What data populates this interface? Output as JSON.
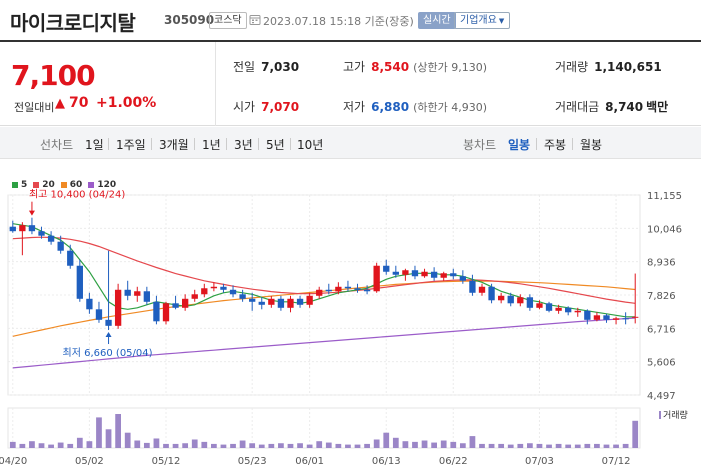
{
  "header": {
    "stock_name": "마이크로디지탈",
    "stock_code": "305090",
    "market_badge": "코스닥",
    "basis_time": "2023.07.18 15:18 기준(장중)",
    "realtime_badge": "실시간",
    "company_info_button": "기업개요",
    "icons": {
      "clock": "clock-icon",
      "dropdown": "caret-down-icon"
    }
  },
  "quote": {
    "current_price": "7,100",
    "diff_label": "전일대비",
    "diff_arrow": "▲",
    "diff_value": "70",
    "diff_rate": "+1.00%",
    "prev_close": {
      "label": "전일",
      "value": "7,030"
    },
    "high": {
      "label": "고가",
      "value": "8,540",
      "sub": "(상한가 9,130)"
    },
    "volume": {
      "label": "거래량",
      "value": "1,140,651"
    },
    "open": {
      "label": "시가",
      "value": "7,070"
    },
    "low": {
      "label": "저가",
      "value": "6,880",
      "sub": "(하한가 4,930)"
    },
    "trade_amount": {
      "label": "거래대금",
      "value": "8,740",
      "unit": "백만"
    },
    "colors": {
      "up": "#e0151d",
      "down": "#1f5fbf"
    }
  },
  "periods": {
    "line_label": "선차트",
    "line_options": [
      "1일",
      "1주일",
      "3개월",
      "1년",
      "3년",
      "5년",
      "10년"
    ],
    "candle_label": "봉차트",
    "candle_options": [
      "일봉",
      "주봉",
      "월봉"
    ],
    "candle_selected": "일봉"
  },
  "chart_data": {
    "type": "candlestick",
    "moving_averages": [
      {
        "name": "5",
        "color": "#2ea043"
      },
      {
        "name": "20",
        "color": "#e5484d"
      },
      {
        "name": "60",
        "color": "#f08a24"
      },
      {
        "name": "120",
        "color": "#9b5cc9"
      }
    ],
    "y_ticks": [
      11155,
      10046,
      8936,
      7826,
      6716,
      5606,
      4497
    ],
    "y_tick_labels": [
      "11,155",
      "10,046",
      "8,936",
      "7,826",
      "6,716",
      "5,606",
      "4,497"
    ],
    "y_range": [
      4497,
      11155
    ],
    "x_ticks": [
      {
        "index": 0,
        "label": "04/20"
      },
      {
        "index": 8,
        "label": "05/02"
      },
      {
        "index": 16,
        "label": "05/12"
      },
      {
        "index": 25,
        "label": "05/23"
      },
      {
        "index": 31,
        "label": "06/01"
      },
      {
        "index": 39,
        "label": "06/13"
      },
      {
        "index": 46,
        "label": "06/22"
      },
      {
        "index": 55,
        "label": "07/03"
      },
      {
        "index": 63,
        "label": "07/12"
      }
    ],
    "max_annotation": {
      "label": "최고 10,400 (04/24)",
      "index": 2,
      "value": 10400
    },
    "min_annotation": {
      "label": "최저 6,660 (05/04)",
      "index": 10,
      "value": 6660
    },
    "volume_label": "거래량",
    "candles": [
      {
        "o": 10100,
        "h": 10300,
        "l": 9900,
        "c": 9950
      },
      {
        "o": 9950,
        "h": 10250,
        "l": 9150,
        "c": 10150
      },
      {
        "o": 10150,
        "h": 10400,
        "l": 9850,
        "c": 9950
      },
      {
        "o": 9950,
        "h": 10100,
        "l": 9700,
        "c": 9800
      },
      {
        "o": 9800,
        "h": 9950,
        "l": 9500,
        "c": 9600
      },
      {
        "o": 9600,
        "h": 9800,
        "l": 9200,
        "c": 9300
      },
      {
        "o": 9300,
        "h": 9500,
        "l": 8700,
        "c": 8800
      },
      {
        "o": 8800,
        "h": 9000,
        "l": 7600,
        "c": 7700
      },
      {
        "o": 7700,
        "h": 7900,
        "l": 7200,
        "c": 7350
      },
      {
        "o": 7350,
        "h": 7600,
        "l": 6900,
        "c": 7000
      },
      {
        "o": 7000,
        "h": 9300,
        "l": 6660,
        "c": 6800
      },
      {
        "o": 6800,
        "h": 8200,
        "l": 6700,
        "c": 8000
      },
      {
        "o": 8000,
        "h": 8300,
        "l": 7650,
        "c": 7800
      },
      {
        "o": 7800,
        "h": 8100,
        "l": 7600,
        "c": 7950
      },
      {
        "o": 7950,
        "h": 8100,
        "l": 7500,
        "c": 7600
      },
      {
        "o": 7600,
        "h": 7800,
        "l": 6850,
        "c": 6950
      },
      {
        "o": 6950,
        "h": 7600,
        "l": 6850,
        "c": 7550
      },
      {
        "o": 7550,
        "h": 7800,
        "l": 7350,
        "c": 7400
      },
      {
        "o": 7400,
        "h": 7850,
        "l": 7300,
        "c": 7700
      },
      {
        "o": 7700,
        "h": 8000,
        "l": 7600,
        "c": 7850
      },
      {
        "o": 7850,
        "h": 8200,
        "l": 7750,
        "c": 8050
      },
      {
        "o": 8050,
        "h": 8250,
        "l": 7950,
        "c": 8100
      },
      {
        "o": 8100,
        "h": 8200,
        "l": 7900,
        "c": 8000
      },
      {
        "o": 8000,
        "h": 8150,
        "l": 7750,
        "c": 7850
      },
      {
        "o": 7850,
        "h": 8000,
        "l": 7600,
        "c": 7700
      },
      {
        "o": 7700,
        "h": 7900,
        "l": 7300,
        "c": 7600
      },
      {
        "o": 7600,
        "h": 7750,
        "l": 7350,
        "c": 7500
      },
      {
        "o": 7500,
        "h": 7800,
        "l": 7400,
        "c": 7700
      },
      {
        "o": 7700,
        "h": 7800,
        "l": 7300,
        "c": 7400
      },
      {
        "o": 7400,
        "h": 7800,
        "l": 7250,
        "c": 7700
      },
      {
        "o": 7700,
        "h": 7800,
        "l": 7400,
        "c": 7500
      },
      {
        "o": 7500,
        "h": 7900,
        "l": 7400,
        "c": 7800
      },
      {
        "o": 7800,
        "h": 8100,
        "l": 7700,
        "c": 8000
      },
      {
        "o": 8000,
        "h": 8200,
        "l": 7850,
        "c": 7950
      },
      {
        "o": 7950,
        "h": 8250,
        "l": 7850,
        "c": 8100
      },
      {
        "o": 8100,
        "h": 8300,
        "l": 7950,
        "c": 8050
      },
      {
        "o": 8050,
        "h": 8200,
        "l": 7900,
        "c": 8000
      },
      {
        "o": 8000,
        "h": 8150,
        "l": 7850,
        "c": 7950
      },
      {
        "o": 7950,
        "h": 8900,
        "l": 7900,
        "c": 8800
      },
      {
        "o": 8800,
        "h": 9000,
        "l": 8500,
        "c": 8600
      },
      {
        "o": 8600,
        "h": 8800,
        "l": 8400,
        "c": 8500
      },
      {
        "o": 8500,
        "h": 8700,
        "l": 8300,
        "c": 8650
      },
      {
        "o": 8650,
        "h": 8800,
        "l": 8350,
        "c": 8450
      },
      {
        "o": 8450,
        "h": 8700,
        "l": 8400,
        "c": 8600
      },
      {
        "o": 8600,
        "h": 8750,
        "l": 8300,
        "c": 8400
      },
      {
        "o": 8400,
        "h": 8600,
        "l": 8300,
        "c": 8550
      },
      {
        "o": 8550,
        "h": 8700,
        "l": 8350,
        "c": 8450
      },
      {
        "o": 8450,
        "h": 8650,
        "l": 8200,
        "c": 8300
      },
      {
        "o": 8300,
        "h": 8500,
        "l": 7800,
        "c": 7900
      },
      {
        "o": 7900,
        "h": 8200,
        "l": 7800,
        "c": 8100
      },
      {
        "o": 8100,
        "h": 8200,
        "l": 7550,
        "c": 7650
      },
      {
        "o": 7650,
        "h": 7900,
        "l": 7550,
        "c": 7800
      },
      {
        "o": 7800,
        "h": 7900,
        "l": 7450,
        "c": 7550
      },
      {
        "o": 7550,
        "h": 7850,
        "l": 7450,
        "c": 7750
      },
      {
        "o": 7750,
        "h": 7850,
        "l": 7300,
        "c": 7400
      },
      {
        "o": 7400,
        "h": 7650,
        "l": 7350,
        "c": 7550
      },
      {
        "o": 7550,
        "h": 7600,
        "l": 7250,
        "c": 7300
      },
      {
        "o": 7300,
        "h": 7500,
        "l": 7200,
        "c": 7400
      },
      {
        "o": 7400,
        "h": 7450,
        "l": 7150,
        "c": 7250
      },
      {
        "o": 7250,
        "h": 7400,
        "l": 7100,
        "c": 7300
      },
      {
        "o": 7300,
        "h": 7350,
        "l": 6850,
        "c": 7000
      },
      {
        "o": 7000,
        "h": 7250,
        "l": 6950,
        "c": 7150
      },
      {
        "o": 7150,
        "h": 7200,
        "l": 6900,
        "c": 7000
      },
      {
        "o": 7000,
        "h": 7100,
        "l": 6850,
        "c": 7050
      },
      {
        "o": 7050,
        "h": 7250,
        "l": 6850,
        "c": 7030
      },
      {
        "o": 7070,
        "h": 8540,
        "l": 6880,
        "c": 7100
      }
    ],
    "volumes": [
      0.18,
      0.12,
      0.2,
      0.14,
      0.1,
      0.16,
      0.12,
      0.3,
      0.2,
      0.9,
      0.55,
      1.0,
      0.45,
      0.22,
      0.15,
      0.28,
      0.12,
      0.12,
      0.14,
      0.25,
      0.18,
      0.12,
      0.1,
      0.12,
      0.22,
      0.14,
      0.1,
      0.12,
      0.14,
      0.12,
      0.14,
      0.1,
      0.2,
      0.16,
      0.12,
      0.1,
      0.1,
      0.12,
      0.25,
      0.45,
      0.3,
      0.2,
      0.18,
      0.22,
      0.16,
      0.22,
      0.18,
      0.14,
      0.35,
      0.12,
      0.12,
      0.12,
      0.1,
      0.12,
      0.14,
      0.12,
      0.1,
      0.12,
      0.1,
      0.1,
      0.12,
      0.12,
      0.1,
      0.1,
      0.12,
      0.8
    ],
    "ma5": [
      10200,
      10150,
      10100,
      9950,
      9800,
      9650,
      9400,
      9000,
      8600,
      8100,
      7600,
      7400,
      7350,
      7400,
      7500,
      7600,
      7550,
      7500,
      7450,
      7500,
      7650,
      7800,
      7900,
      7950,
      7900,
      7850,
      7750,
      7650,
      7600,
      7600,
      7550,
      7600,
      7700,
      7800,
      7900,
      7950,
      8000,
      8050,
      8200,
      8350,
      8450,
      8500,
      8550,
      8550,
      8550,
      8500,
      8500,
      8450,
      8350,
      8250,
      8100,
      7950,
      7850,
      7750,
      7650,
      7600,
      7500,
      7450,
      7400,
      7350,
      7300,
      7250,
      7200,
      7150,
      7100,
      7100
    ],
    "ma20": [
      9700,
      9720,
      9740,
      9750,
      9740,
      9720,
      9680,
      9620,
      9540,
      9440,
      9320,
      9200,
      9080,
      8960,
      8850,
      8740,
      8640,
      8540,
      8460,
      8380,
      8300,
      8240,
      8180,
      8120,
      8070,
      8020,
      7980,
      7940,
      7910,
      7890,
      7870,
      7870,
      7880,
      7900,
      7920,
      7950,
      7980,
      8010,
      8050,
      8090,
      8130,
      8170,
      8210,
      8250,
      8280,
      8300,
      8320,
      8330,
      8330,
      8320,
      8300,
      8270,
      8240,
      8200,
      8150,
      8100,
      8050,
      7990,
      7930,
      7870,
      7810,
      7750,
      7690,
      7640,
      7590,
      7550
    ],
    "ma60": [
      6450,
      6520,
      6590,
      6660,
      6730,
      6800,
      6860,
      6920,
      6980,
      7040,
      7100,
      7150,
      7200,
      7250,
      7300,
      7350,
      7400,
      7440,
      7480,
      7520,
      7560,
      7600,
      7640,
      7670,
      7700,
      7730,
      7760,
      7790,
      7820,
      7850,
      7880,
      7910,
      7940,
      7970,
      8000,
      8030,
      8060,
      8090,
      8120,
      8150,
      8180,
      8200,
      8220,
      8240,
      8260,
      8270,
      8280,
      8285,
      8290,
      8290,
      8285,
      8280,
      8270,
      8260,
      8250,
      8235,
      8220,
      8200,
      8180,
      8160,
      8140,
      8120,
      8100,
      8070,
      8040,
      8010
    ],
    "ma120": [
      5400,
      5430,
      5460,
      5490,
      5520,
      5550,
      5580,
      5610,
      5640,
      5670,
      5700,
      5730,
      5760,
      5790,
      5815,
      5840,
      5865,
      5890,
      5915,
      5940,
      5965,
      5990,
      6015,
      6040,
      6065,
      6090,
      6115,
      6140,
      6165,
      6190,
      6215,
      6240,
      6265,
      6290,
      6315,
      6340,
      6365,
      6390,
      6415,
      6440,
      6465,
      6490,
      6515,
      6540,
      6565,
      6590,
      6615,
      6640,
      6665,
      6690,
      6715,
      6740,
      6765,
      6790,
      6815,
      6840,
      6865,
      6890,
      6915,
      6940,
      6960,
      6980,
      7000,
      7020,
      7040,
      7060
    ]
  }
}
